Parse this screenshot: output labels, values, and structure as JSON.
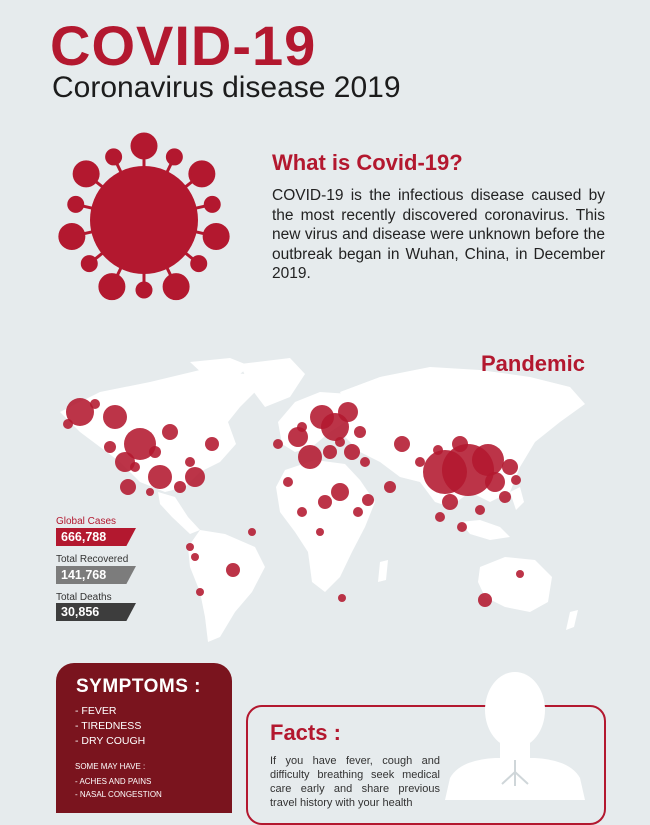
{
  "header": {
    "title": "COVID-19",
    "subtitle": "Coronavirus disease 2019"
  },
  "intro": {
    "heading": "What is Covid-19?",
    "body": "COVID-19 is the infectious disease caused by the most recently discovered coronavirus. This new virus and disease were unknown before the outbreak began in Wuhan, China, in December 2019."
  },
  "pandemic": {
    "heading": "Pandemic",
    "stats": [
      {
        "label": "Global Cases",
        "value": "666,788",
        "color": "#b3182f"
      },
      {
        "label": "Total Recovered",
        "value": "141,768",
        "color": "#7c7c7c"
      },
      {
        "label": "Total Deaths",
        "value": "30,856",
        "color": "#3d3d3d"
      }
    ]
  },
  "symptoms": {
    "heading": "SYMPTOMS :",
    "main": [
      "- FEVER",
      "- TIREDNESS",
      "- DRY COUGH"
    ],
    "some_heading": "SOME MAY HAVE :",
    "some": [
      "- ACHES AND PAINS",
      "- NASAL CONGESTION"
    ]
  },
  "facts": {
    "heading": "Facts :",
    "body": "If you have fever, cough and difficulty breathing seek medical care early and share previous travel history with your health"
  },
  "colors": {
    "accent": "#b3182f",
    "dark_red": "#7a141e",
    "background": "#e6ebed"
  },
  "icons": [
    "virus-icon",
    "world-map-icon",
    "person-lungs-icon"
  ]
}
